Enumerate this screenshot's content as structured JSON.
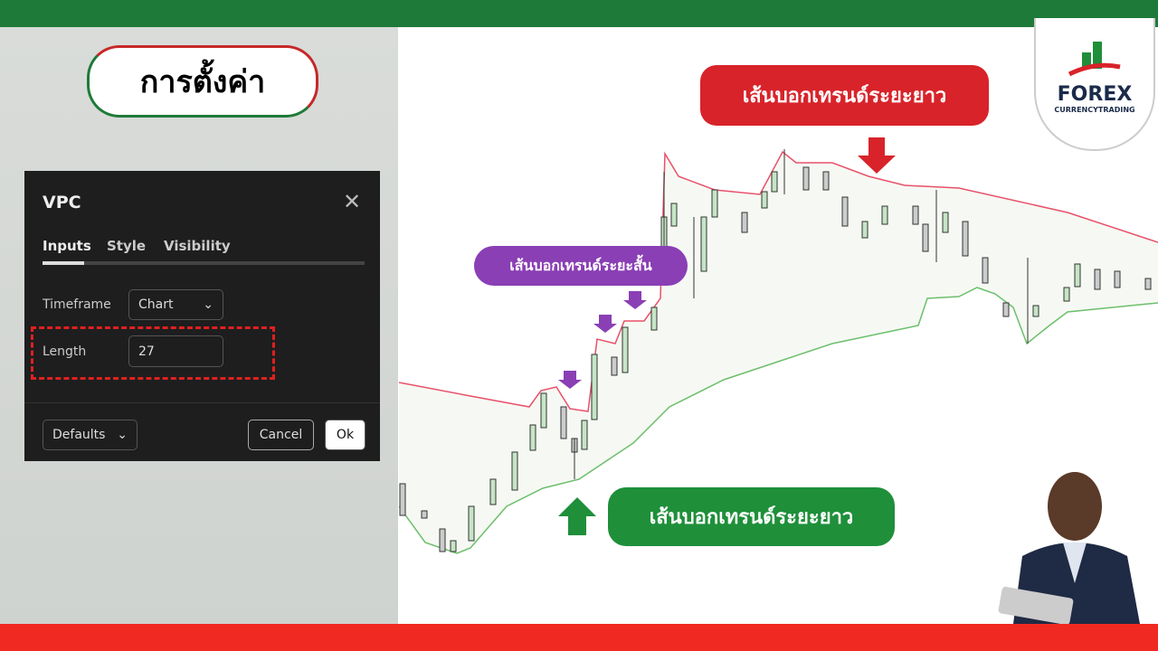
{
  "header": {
    "title": "การตั้งค่า"
  },
  "dialog": {
    "title": "VPC",
    "tabs": [
      "Inputs",
      "Style",
      "Visibility"
    ],
    "fields": [
      {
        "label": "Timeframe",
        "value": "Chart"
      },
      {
        "label": "Length",
        "value": "27"
      }
    ],
    "buttons": {
      "defaults": "Defaults",
      "cancel": "Cancel",
      "ok": "Ok"
    }
  },
  "annotations": {
    "long_top": "เส้นบอกเทรนด์ระยะยาว",
    "short": "เส้นบอกเทรนด์ระยะสั้น",
    "long_bottom": "เส้นบอกเทรนด์ระยะยาว"
  },
  "logo": {
    "name": "FOREX",
    "tagline": "CURRENCYTRADING"
  }
}
